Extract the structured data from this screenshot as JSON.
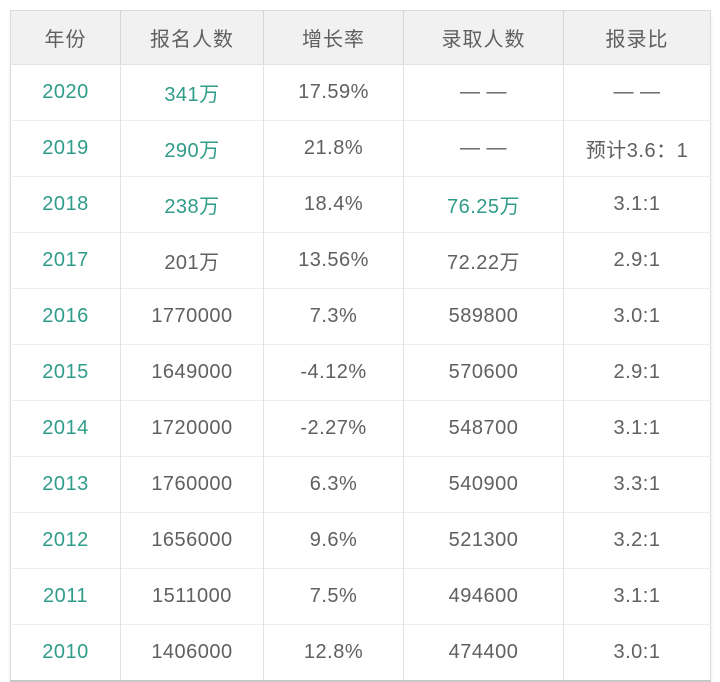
{
  "chart_data": {
    "type": "table",
    "title": "",
    "columns": [
      "年份",
      "报名人数",
      "增长率",
      "录取人数",
      "报录比"
    ],
    "rows": [
      [
        "2020",
        "341万",
        "17.59%",
        "— —",
        "— —"
      ],
      [
        "2019",
        "290万",
        "21.8%",
        "— —",
        "预计3.6：1"
      ],
      [
        "2018",
        "238万",
        "18.4%",
        "76.25万",
        "3.1:1"
      ],
      [
        "2017",
        "201万",
        "13.56%",
        "72.22万",
        "2.9:1"
      ],
      [
        "2016",
        "1770000",
        "7.3%",
        "589800",
        "3.0:1"
      ],
      [
        "2015",
        "1649000",
        "-4.12%",
        "570600",
        "2.9:1"
      ],
      [
        "2014",
        "1720000",
        "-2.27%",
        "548700",
        "3.1:1"
      ],
      [
        "2013",
        "1760000",
        "6.3%",
        "540900",
        "3.3:1"
      ],
      [
        "2012",
        "1656000",
        "9.6%",
        "521300",
        "3.2:1"
      ],
      [
        "2011",
        "1511000",
        "7.5%",
        "494600",
        "3.1:1"
      ],
      [
        "2010",
        "1406000",
        "12.8%",
        "474400",
        "3.0:1"
      ]
    ]
  },
  "style": {
    "accent_teal": "#2f9c8a",
    "text_gray": "#5f5f5f",
    "header_bg": "#f1f1f1"
  },
  "highlighted_cells": [
    [
      0,
      0
    ],
    [
      0,
      1
    ],
    [
      1,
      0
    ],
    [
      1,
      1
    ],
    [
      2,
      0
    ],
    [
      2,
      1
    ],
    [
      2,
      3
    ],
    [
      3,
      0
    ],
    [
      4,
      0
    ],
    [
      5,
      0
    ],
    [
      6,
      0
    ],
    [
      7,
      0
    ],
    [
      8,
      0
    ],
    [
      9,
      0
    ],
    [
      10,
      0
    ]
  ],
  "column_keys": [
    "year",
    "applicants",
    "growth-rate",
    "admitted",
    "ratio"
  ]
}
